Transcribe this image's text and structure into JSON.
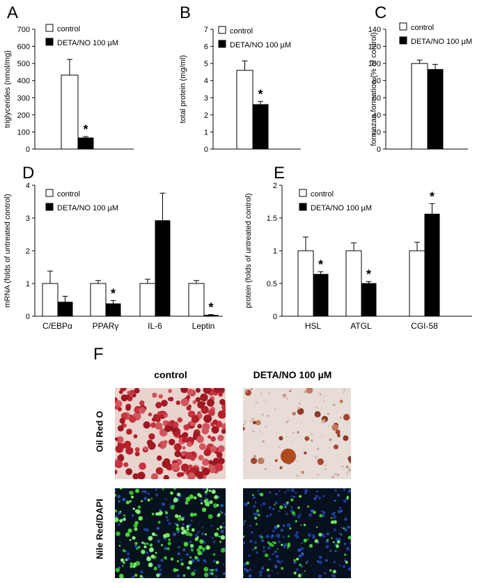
{
  "figure": {
    "panel_f_letter": "F",
    "col_control": "control",
    "col_deta": "DETA/NO 100 µM",
    "row_oil": "Oil Red O",
    "row_nile": "Nile Red/DAPI"
  },
  "chart_data": [
    {
      "type": "bar",
      "panel": "A",
      "ylabel": "triglycerides (nmol/mg)",
      "ylim": [
        0,
        700
      ],
      "yticks": [
        0,
        100,
        200,
        300,
        400,
        500,
        600,
        700
      ],
      "ytick_labels": [
        "0",
        "100",
        "200",
        "300",
        "400",
        "500",
        "600",
        "700"
      ],
      "categories": [
        ""
      ],
      "legend": [
        "control",
        "DETA/NO 100 µM"
      ],
      "series": [
        {
          "name": "control",
          "color": "#ffffff",
          "values": [
            432
          ],
          "errors": [
            92
          ]
        },
        {
          "name": "DETA/NO 100 µM",
          "color": "#000000",
          "values": [
            65
          ],
          "errors": [
            8
          ]
        }
      ],
      "significance": [
        {
          "category": 0,
          "series": 1,
          "label": "*"
        }
      ]
    },
    {
      "type": "bar",
      "panel": "B",
      "ylabel": "total protein (mg/ml)",
      "ylim": [
        0,
        7
      ],
      "yticks": [
        0,
        1,
        2,
        3,
        4,
        5,
        6,
        7
      ],
      "ytick_labels": [
        "0",
        "1",
        "2",
        "3",
        "4",
        "5",
        "6",
        "7"
      ],
      "categories": [
        ""
      ],
      "legend": [
        "control",
        "DETA/NO 100 µM"
      ],
      "series": [
        {
          "name": "control",
          "color": "#ffffff",
          "values": [
            4.6
          ],
          "errors": [
            0.55
          ]
        },
        {
          "name": "DETA/NO 100 µM",
          "color": "#000000",
          "values": [
            2.6
          ],
          "errors": [
            0.18
          ]
        }
      ],
      "significance": [
        {
          "category": 0,
          "series": 1,
          "label": "*"
        }
      ]
    },
    {
      "type": "bar",
      "panel": "C",
      "ylabel": "formazan formation (% of control)",
      "ylim": [
        0,
        140
      ],
      "yticks": [
        0,
        20,
        40,
        60,
        80,
        100,
        120,
        140
      ],
      "ytick_labels": [
        "0",
        "20",
        "40",
        "60",
        "80",
        "100",
        "120",
        "140"
      ],
      "categories": [
        ""
      ],
      "legend": [
        "control",
        "DETA/NO 100 µM"
      ],
      "series": [
        {
          "name": "control",
          "color": "#ffffff",
          "values": [
            100
          ],
          "errors": [
            4
          ]
        },
        {
          "name": "DETA/NO 100 µM",
          "color": "#000000",
          "values": [
            93
          ],
          "errors": [
            6
          ]
        }
      ],
      "significance": []
    },
    {
      "type": "bar",
      "panel": "D",
      "ylabel": "mRNA (folds of untreated control)",
      "ylim": [
        0,
        4
      ],
      "yticks": [
        0,
        1,
        2,
        3,
        4
      ],
      "ytick_labels": [
        "0",
        "1",
        "2",
        "3",
        "4"
      ],
      "categories": [
        "C/EBPα",
        "PPARγ",
        "IL-6",
        "Leptin"
      ],
      "legend": [
        "control",
        "DETA/NO 100 µM"
      ],
      "series": [
        {
          "name": "control",
          "color": "#ffffff",
          "values": [
            1.0,
            1.0,
            1.0,
            1.0
          ],
          "errors": [
            0.38,
            0.09,
            0.13,
            0.09
          ]
        },
        {
          "name": "DETA/NO 100 µM",
          "color": "#000000",
          "values": [
            0.43,
            0.38,
            2.92,
            0.03
          ],
          "errors": [
            0.18,
            0.1,
            0.84,
            0.02
          ]
        }
      ],
      "significance": [
        {
          "category": 1,
          "series": 1,
          "label": "*"
        },
        {
          "category": 3,
          "series": 1,
          "label": "*"
        }
      ]
    },
    {
      "type": "bar",
      "panel": "E",
      "ylabel": "protein (folds of untreated control)",
      "ylim": [
        0,
        2
      ],
      "yticks": [
        0,
        0.5,
        1,
        1.5,
        2
      ],
      "ytick_labels": [
        "0",
        "0.5",
        "1",
        "1.5",
        "2"
      ],
      "categories": [
        "HSL",
        "ATGL",
        "CGI-58"
      ],
      "legend": [
        "control",
        "DETA/NO 100 µM"
      ],
      "series": [
        {
          "name": "control",
          "color": "#ffffff",
          "values": [
            1.0,
            1.0,
            1.0
          ],
          "errors": [
            0.21,
            0.12,
            0.13
          ]
        },
        {
          "name": "DETA/NO 100 µM",
          "color": "#000000",
          "values": [
            0.64,
            0.5,
            1.56
          ],
          "errors": [
            0.04,
            0.03,
            0.16
          ]
        }
      ],
      "significance": [
        {
          "category": 0,
          "series": 1,
          "label": "*"
        },
        {
          "category": 1,
          "series": 1,
          "label": "*"
        },
        {
          "category": 2,
          "series": 1,
          "label": "*"
        }
      ]
    }
  ]
}
